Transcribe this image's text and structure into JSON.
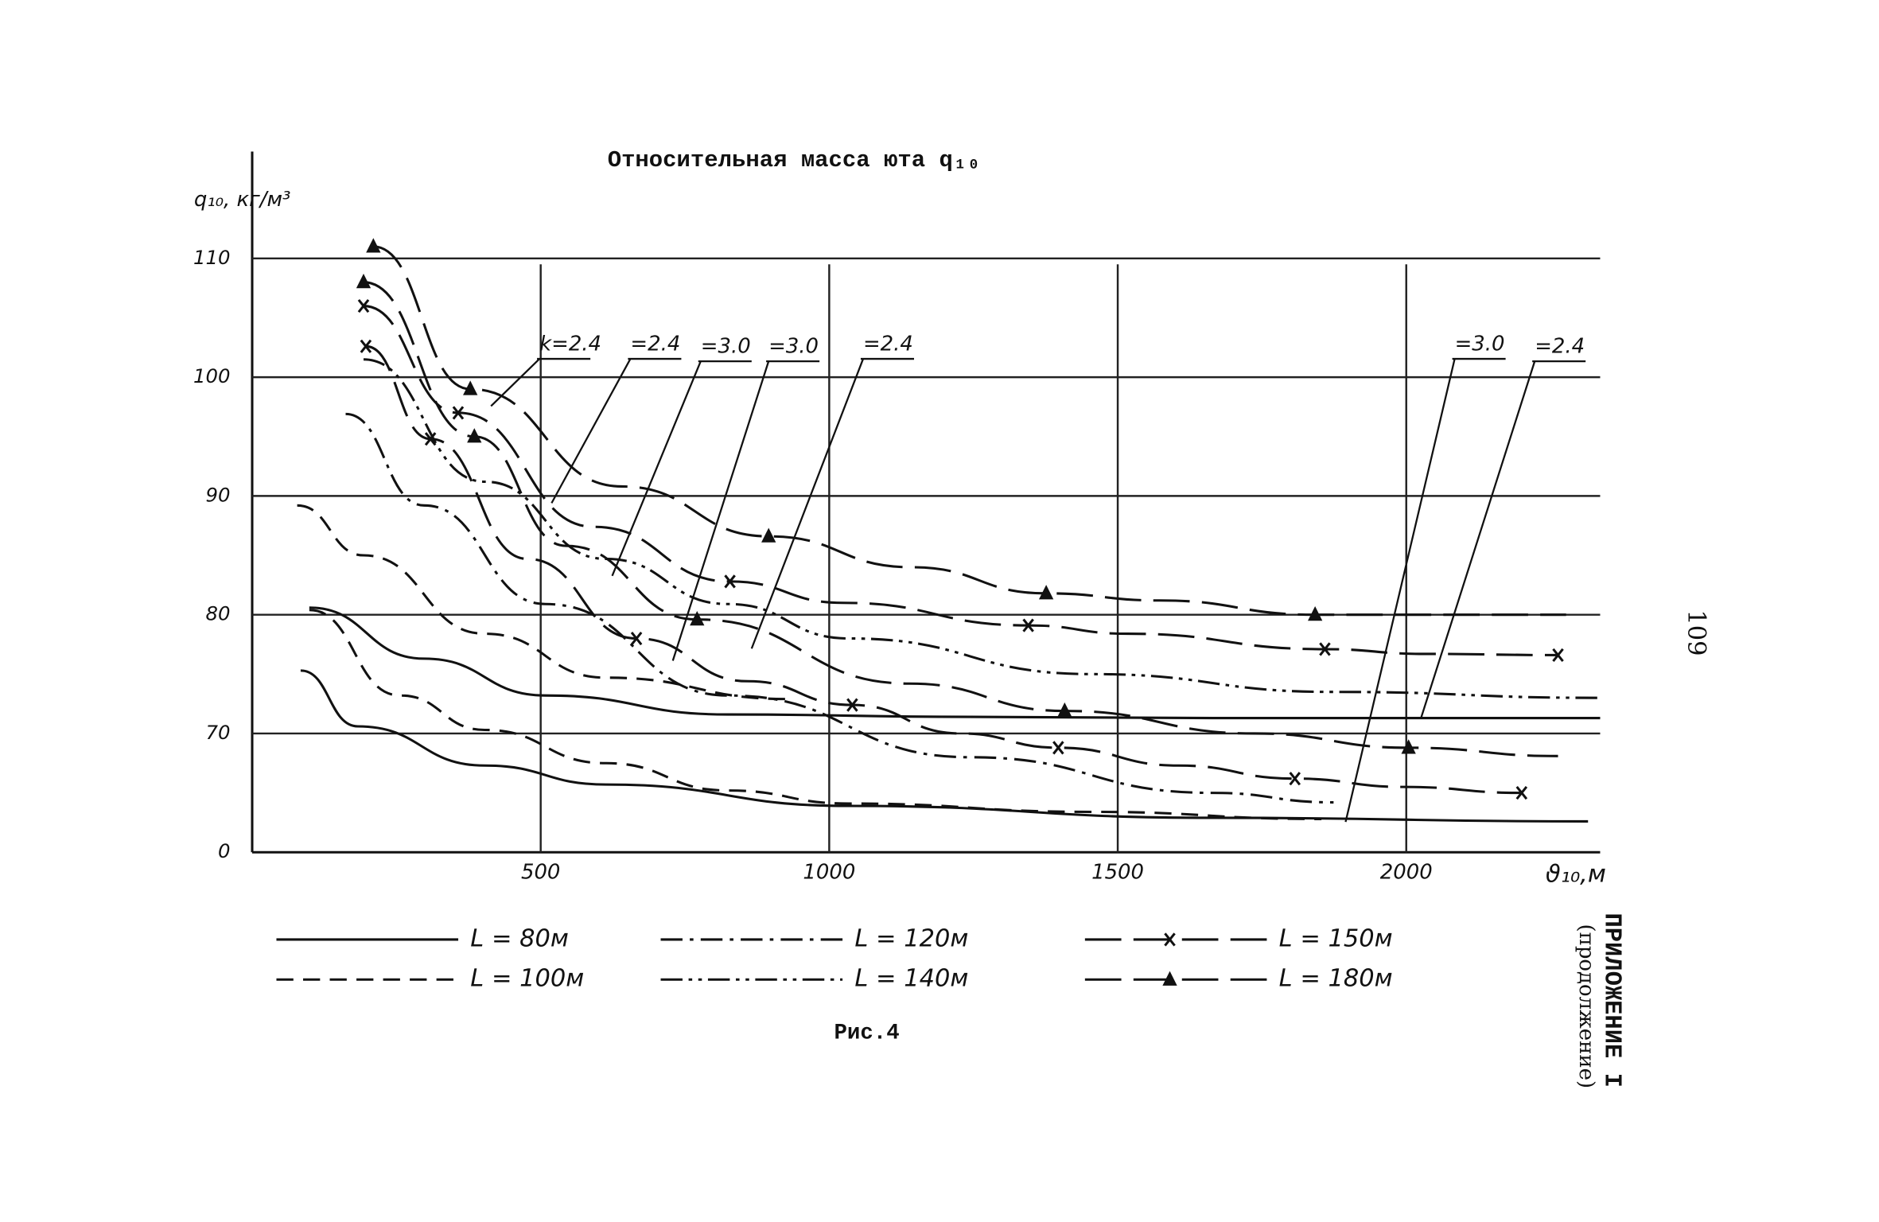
{
  "chart_data": {
    "type": "line",
    "title": "Относительная масса юта q₁₀",
    "y_label": "q₁₀, кг/м³",
    "x_label": "ϑ₁₀,м",
    "caption": "Рис.4",
    "appendix": "ПРИЛОЖЕНИЕ I",
    "appendix_note": "(продолжение)",
    "page_number": "109",
    "xlim": [
      0,
      2336
    ],
    "ylim": [
      60,
      119
    ],
    "xticks": [
      500,
      1000,
      1500,
      2000
    ],
    "yticks": [
      {
        "value": 60,
        "label": "0"
      },
      70,
      80,
      90,
      100,
      110
    ],
    "grid": true,
    "color": "#111111",
    "annotations": [
      "k=2.4",
      "=2.4",
      "=3.0",
      "=3.0",
      "=2.4",
      "=3.0",
      "=2.4"
    ],
    "series": [
      {
        "name": "L = 80м",
        "dash": "solid",
        "marker": "none",
        "x": [
          84,
          183,
          403,
          613,
          1034,
          1664,
          2315
        ],
        "values": [
          75.3,
          70.6,
          67.3,
          65.7,
          63.9,
          62.9,
          62.6
        ]
      },
      {
        "name": "L = 80м",
        "dash": "solid",
        "marker": "none",
        "x": [
          99,
          298,
          508,
          824,
          1244,
          1664,
          2336
        ],
        "values": [
          80.6,
          76.3,
          73.2,
          71.6,
          71.4,
          71.3,
          71.3
        ]
      },
      {
        "name": "L = 100м",
        "dash": "dashed",
        "marker": "none",
        "x": [
          78,
          193,
          403,
          613,
          929
        ],
        "values": [
          89.2,
          85,
          78.4,
          74.7,
          72.9
        ]
      },
      {
        "name": "L = 100м",
        "dash": "dashed",
        "marker": "none",
        "x": [
          99,
          256,
          403,
          613,
          824,
          1034,
          1454,
          1853
        ],
        "values": [
          80.4,
          73.2,
          70.3,
          67.5,
          65.2,
          64.1,
          63.4,
          62.8
        ]
      },
      {
        "name": "L = 120м",
        "dash": "dashdot",
        "marker": "none",
        "x": [
          162,
          298,
          508,
          824,
          1244,
          1664,
          1874
        ],
        "values": [
          96.9,
          89.2,
          80.9,
          73.2,
          68,
          65,
          64.2
        ]
      },
      {
        "name": "L = 140м",
        "dash": "dashdotdot",
        "marker": "none",
        "x": [
          193,
          403,
          613,
          824,
          1034,
          1454,
          1874,
          2336
        ],
        "values": [
          101.5,
          91.2,
          84.7,
          80.9,
          78,
          75,
          73.5,
          73
        ]
      },
      {
        "name": "L = 150м",
        "dash": "longdash",
        "marker": "x",
        "x": [
          193,
          357,
          592,
          828,
          1023,
          1345,
          1517,
          1859,
          2032,
          2263
        ],
        "values": [
          106,
          97,
          87.4,
          82.8,
          81,
          79.1,
          78.4,
          77.1,
          76.7,
          76.6
        ]
      },
      {
        "name": "L = 150м",
        "dash": "longdash",
        "marker": "x",
        "x": [
          197,
          309,
          477,
          666,
          859,
          1040,
          1227,
          1397,
          1605,
          1807,
          1996,
          2200
        ],
        "values": [
          102.6,
          94.8,
          84.7,
          78,
          74.4,
          72.4,
          70,
          68.8,
          67.3,
          66.2,
          65.5,
          65
        ]
      },
      {
        "name": "L = 180м",
        "dash": "longdash",
        "marker": "triangle",
        "x": [
          210,
          378,
          640,
          895,
          1143,
          1376,
          1573,
          1842,
          2277
        ],
        "values": [
          111,
          99,
          90.8,
          86.6,
          84,
          81.8,
          81.2,
          80,
          80
        ]
      },
      {
        "name": "L = 180м",
        "dash": "longdash",
        "marker": "triangle",
        "x": [
          193,
          385,
          544,
          771,
          1139,
          1408,
          1737,
          2004,
          2263
        ],
        "values": [
          108,
          95,
          85.8,
          79.6,
          74.2,
          71.9,
          70,
          68.8,
          68.1
        ]
      }
    ]
  }
}
